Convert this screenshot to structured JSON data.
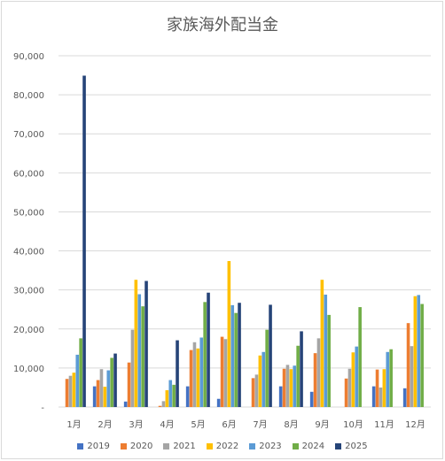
{
  "chart_data": {
    "type": "bar",
    "title": "家族海外配当金",
    "xlabel": "",
    "ylabel": "",
    "ylim": [
      0,
      90000
    ],
    "yticks": [
      "-",
      "10,000",
      "20,000",
      "30,000",
      "40,000",
      "50,000",
      "60,000",
      "70,000",
      "80,000",
      "90,000"
    ],
    "grid": true,
    "legend_position": "bottom",
    "categories": [
      "1月",
      "2月",
      "3月",
      "4月",
      "5月",
      "6月",
      "7月",
      "8月",
      "9月",
      "10月",
      "11月",
      "12月"
    ],
    "series": [
      {
        "name": "2019",
        "color": "#4472c4",
        "values": [
          0,
          5300,
          1400,
          0,
          5300,
          2100,
          0,
          5300,
          3900,
          0,
          5300,
          4800
        ]
      },
      {
        "name": "2020",
        "color": "#ed7d31",
        "values": [
          7200,
          6900,
          11400,
          300,
          14600,
          18000,
          7400,
          9800,
          13800,
          7300,
          9600,
          21500
        ]
      },
      {
        "name": "2021",
        "color": "#a5a5a5",
        "values": [
          8000,
          9700,
          19800,
          1500,
          16600,
          17400,
          8300,
          10800,
          17600,
          9800,
          5000,
          15600
        ]
      },
      {
        "name": "2022",
        "color": "#ffc000",
        "values": [
          8800,
          5200,
          32600,
          4300,
          15000,
          37400,
          13200,
          9700,
          32600,
          14000,
          9700,
          28400
        ]
      },
      {
        "name": "2023",
        "color": "#5b9bd5",
        "values": [
          13400,
          9400,
          28900,
          6900,
          17800,
          26100,
          14100,
          10600,
          28800,
          15500,
          14100,
          28700
        ]
      },
      {
        "name": "2024",
        "color": "#70ad47",
        "values": [
          17600,
          12600,
          25800,
          5700,
          26900,
          24100,
          19800,
          15700,
          23600,
          25600,
          14800,
          26400
        ]
      },
      {
        "name": "2025",
        "color": "#264478",
        "values": [
          84900,
          13700,
          32300,
          17100,
          29300,
          26700,
          26200,
          19400,
          0,
          0,
          0,
          0
        ]
      }
    ]
  }
}
